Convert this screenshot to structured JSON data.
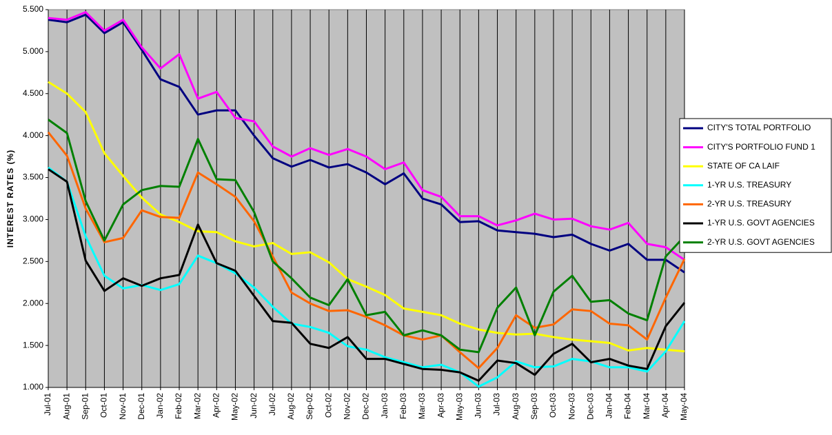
{
  "chart_data": {
    "type": "line",
    "y_label": "INTEREST RATES (%)",
    "categories": [
      "Jul-01",
      "Aug-01",
      "Sep-01",
      "Oct-01",
      "Nov-01",
      "Dec-01",
      "Jan-02",
      "Feb-02",
      "Mar-02",
      "Apr-02",
      "May-02",
      "Jun-02",
      "Jul-02",
      "Aug-02",
      "Sep-02",
      "Oct-02",
      "Nov-02",
      "Dec-02",
      "Jan-03",
      "Feb-03",
      "Mar-03",
      "Apr-03",
      "May-03",
      "Jun-03",
      "Jul-03",
      "Aug-03",
      "Sep-03",
      "Oct-03",
      "Nov-03",
      "Dec-03",
      "Jan-04",
      "Feb-04",
      "Mar-04",
      "Apr-04",
      "May-04"
    ],
    "series": [
      {
        "name": "CITY'S TOTAL PORTFOLIO",
        "color": "#000080",
        "values": [
          5.38,
          5.35,
          5.44,
          5.22,
          5.35,
          5.02,
          4.67,
          4.58,
          4.25,
          4.3,
          4.3,
          4.0,
          3.73,
          3.63,
          3.71,
          3.62,
          3.66,
          3.56,
          3.42,
          3.55,
          3.25,
          3.18,
          2.97,
          2.98,
          2.87,
          2.85,
          2.83,
          2.79,
          2.82,
          2.71,
          2.63,
          2.71,
          2.52,
          2.52,
          2.37
        ]
      },
      {
        "name": "CITY'S PORTFOLIO FUND 1",
        "color": "#ff00ff",
        "values": [
          5.4,
          5.38,
          5.47,
          5.25,
          5.38,
          5.05,
          4.8,
          4.97,
          4.44,
          4.52,
          4.21,
          4.17,
          3.87,
          3.75,
          3.85,
          3.77,
          3.84,
          3.75,
          3.6,
          3.68,
          3.35,
          3.27,
          3.04,
          3.04,
          2.93,
          2.99,
          3.07,
          3.0,
          3.01,
          2.92,
          2.88,
          2.96,
          2.71,
          2.67,
          2.52
        ]
      },
      {
        "name": "STATE OF CA LAIF",
        "color": "#ffff00",
        "values": [
          4.64,
          4.5,
          4.28,
          3.79,
          3.52,
          3.26,
          3.06,
          2.97,
          2.86,
          2.85,
          2.74,
          2.68,
          2.72,
          2.59,
          2.61,
          2.49,
          2.29,
          2.2,
          2.1,
          1.94,
          1.9,
          1.86,
          1.76,
          1.69,
          1.65,
          1.63,
          1.64,
          1.6,
          1.57,
          1.55,
          1.53,
          1.44,
          1.47,
          1.45,
          1.43
        ]
      },
      {
        "name": "1-YR U.S. TREASURY",
        "color": "#00ffff",
        "values": [
          3.62,
          3.45,
          2.8,
          2.33,
          2.18,
          2.22,
          2.16,
          2.23,
          2.57,
          2.48,
          2.36,
          2.19,
          1.96,
          1.76,
          1.72,
          1.65,
          1.49,
          1.45,
          1.36,
          1.3,
          1.24,
          1.27,
          1.18,
          1.01,
          1.12,
          1.31,
          1.24,
          1.25,
          1.34,
          1.31,
          1.24,
          1.24,
          1.19,
          1.43,
          1.79
        ]
      },
      {
        "name": "2-YR U.S. TREASURY",
        "color": "#ff6600",
        "values": [
          4.04,
          3.76,
          3.13,
          2.73,
          2.78,
          3.11,
          3.03,
          3.02,
          3.56,
          3.42,
          3.27,
          2.98,
          2.56,
          2.13,
          2.0,
          1.91,
          1.92,
          1.84,
          1.74,
          1.62,
          1.57,
          1.62,
          1.42,
          1.23,
          1.47,
          1.86,
          1.71,
          1.75,
          1.93,
          1.91,
          1.76,
          1.74,
          1.57,
          2.07,
          2.53
        ]
      },
      {
        "name": "1-YR U.S. GOVT AGENCIES",
        "color": "#000000",
        "values": [
          3.6,
          3.45,
          2.51,
          2.15,
          2.3,
          2.21,
          2.3,
          2.34,
          2.94,
          2.48,
          2.39,
          2.09,
          1.79,
          1.77,
          1.52,
          1.47,
          1.6,
          1.34,
          1.34,
          1.28,
          1.22,
          1.21,
          1.18,
          1.08,
          1.32,
          1.29,
          1.15,
          1.4,
          1.52,
          1.3,
          1.34,
          1.26,
          1.22,
          1.73,
          2.01
        ]
      },
      {
        "name": "2-YR U.S. GOVT AGENCIES",
        "color": "#008000",
        "values": [
          4.19,
          4.03,
          3.22,
          2.75,
          3.18,
          3.35,
          3.4,
          3.39,
          3.96,
          3.48,
          3.47,
          3.09,
          2.5,
          2.3,
          2.07,
          1.98,
          2.29,
          1.86,
          1.9,
          1.62,
          1.68,
          1.62,
          1.45,
          1.42,
          1.95,
          2.19,
          1.62,
          2.14,
          2.33,
          2.02,
          2.04,
          1.88,
          1.8,
          2.56,
          2.8
        ]
      }
    ],
    "ylim": [
      1.0,
      5.5
    ],
    "yticks": [
      {
        "value": 1.0,
        "label": "1.000"
      },
      {
        "value": 1.5,
        "label": "1.500"
      },
      {
        "value": 2.0,
        "label": "2.000"
      },
      {
        "value": 2.5,
        "label": "2.500"
      },
      {
        "value": 3.0,
        "label": "3.000"
      },
      {
        "value": 3.5,
        "label": "3.500"
      },
      {
        "value": 4.0,
        "label": "4.000"
      },
      {
        "value": 4.5,
        "label": "4.500"
      },
      {
        "value": 5.0,
        "label": "5.000"
      },
      {
        "value": 5.5,
        "label": "5.500"
      }
    ],
    "grid": "vertical",
    "plot_background": "#c0c0c0",
    "legend_position": "right"
  }
}
